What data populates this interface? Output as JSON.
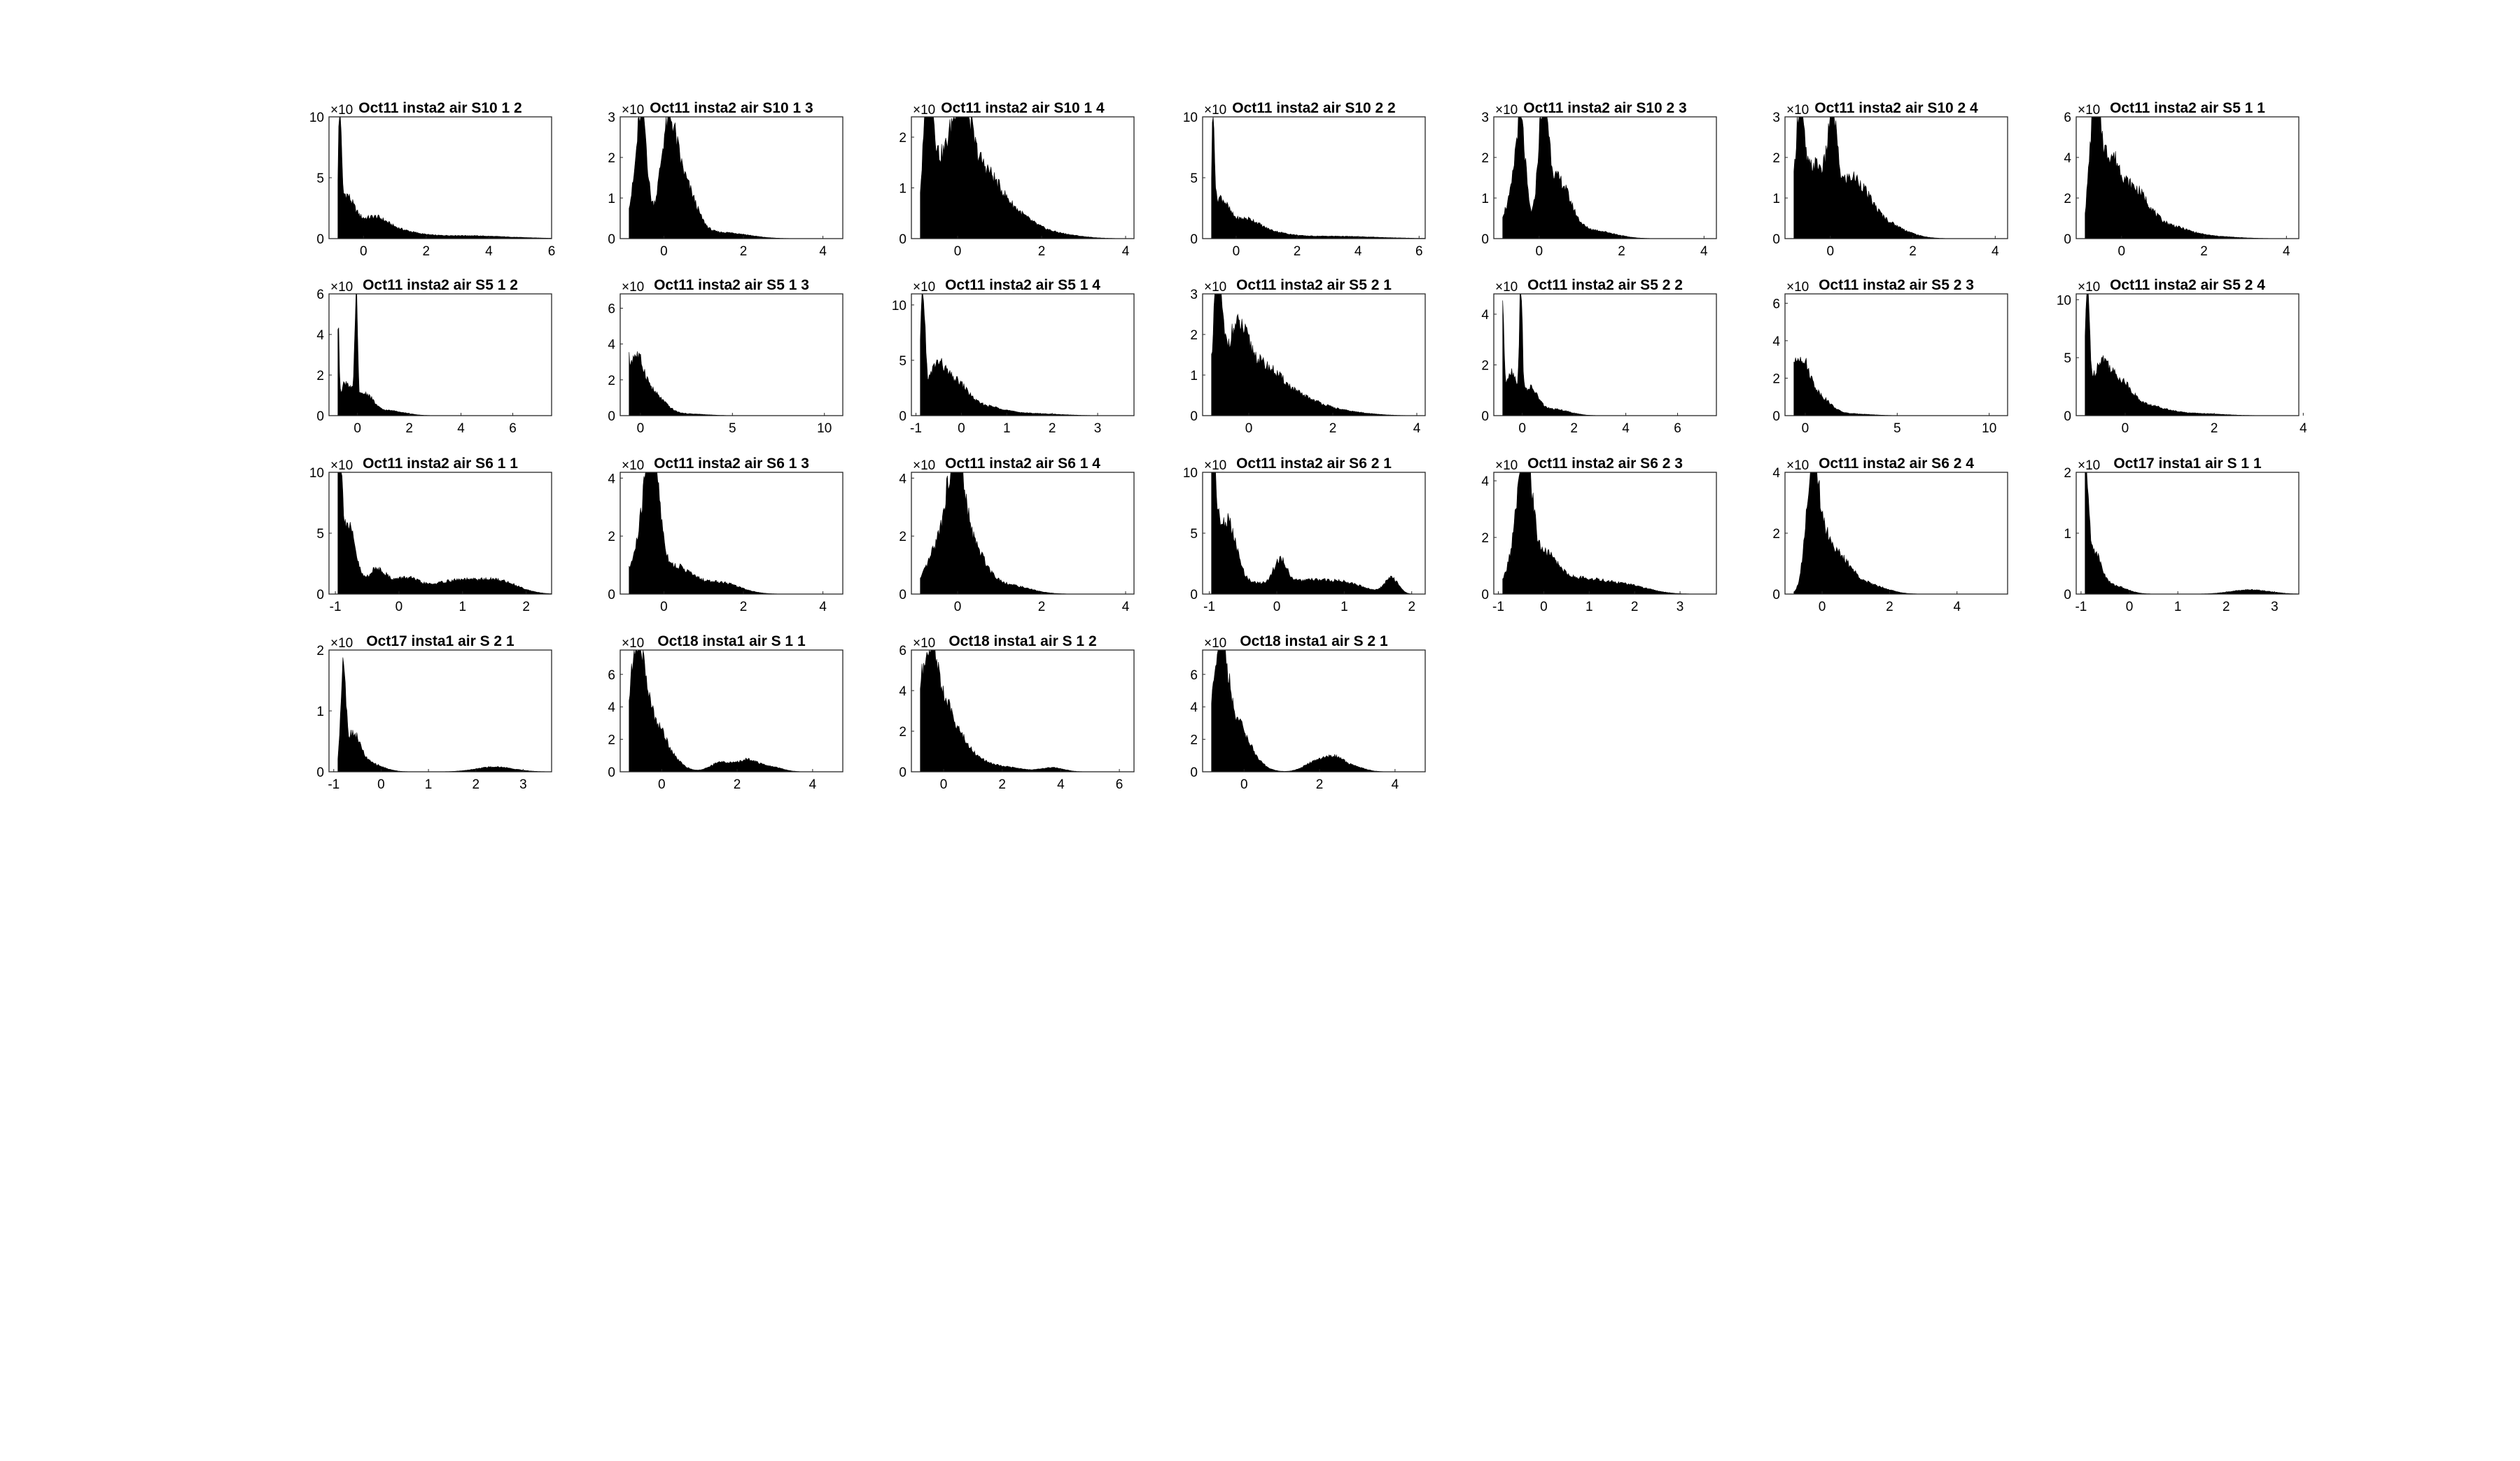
{
  "figure": {
    "background": "#ffffff",
    "bar_color": "#000000",
    "axes_color": "#262626"
  },
  "chart_data": [
    {
      "type": "histogram",
      "title": "Oct11 insta2 air S10 1 2",
      "exponent_label": "×10",
      "xticks": [
        0,
        2,
        4,
        6
      ],
      "xlim": [
        -1.1,
        6
      ],
      "yticks": [
        0,
        5,
        10
      ],
      "ylim": [
        0,
        10
      ],
      "peaks": [
        [
          -0.75,
          9.5,
          0.04
        ],
        [
          -0.6,
          3.5,
          0.3
        ],
        [
          0.3,
          1.4,
          0.4
        ],
        [
          1.0,
          0.6,
          0.6
        ],
        [
          3.0,
          0.25,
          1.5
        ]
      ]
    },
    {
      "type": "histogram",
      "title": "Oct11 insta2 air S10 1 3",
      "exponent_label": "×10",
      "xticks": [
        0,
        2,
        4
      ],
      "xlim": [
        -1.1,
        4.5
      ],
      "yticks": [
        0,
        1,
        2,
        3
      ],
      "ylim": [
        0,
        3
      ],
      "peaks": [
        [
          -0.55,
          2.4,
          0.12
        ],
        [
          -0.7,
          1.0,
          0.25
        ],
        [
          0.1,
          2.4,
          0.2
        ],
        [
          0.5,
          1.3,
          0.3
        ],
        [
          1.5,
          0.15,
          0.6
        ]
      ]
    },
    {
      "type": "histogram",
      "title": "Oct11 insta2 air S10 1 4",
      "exponent_label": "×10",
      "xticks": [
        0,
        2,
        4
      ],
      "xlim": [
        -1.1,
        4.2
      ],
      "yticks": [
        0,
        1,
        2
      ],
      "ylim": [
        0,
        2.4
      ],
      "peaks": [
        [
          -0.7,
          2.3,
          0.12
        ],
        [
          -0.35,
          1.4,
          0.3
        ],
        [
          0.1,
          1.75,
          0.2
        ],
        [
          0.5,
          1.2,
          0.4
        ],
        [
          1.2,
          0.5,
          0.5
        ],
        [
          2.2,
          0.1,
          0.6
        ]
      ]
    },
    {
      "type": "histogram",
      "title": "Oct11 insta2 air S10 2 2",
      "exponent_label": "×10",
      "xticks": [
        0,
        2,
        4,
        6
      ],
      "xlim": [
        -1.1,
        6.2
      ],
      "yticks": [
        0,
        5,
        10
      ],
      "ylim": [
        0,
        10
      ],
      "peaks": [
        [
          -0.75,
          8.7,
          0.04
        ],
        [
          -0.55,
          3.2,
          0.3
        ],
        [
          0.3,
          1.3,
          0.4
        ],
        [
          1.0,
          0.5,
          0.6
        ],
        [
          3.0,
          0.2,
          1.5
        ]
      ]
    },
    {
      "type": "histogram",
      "title": "Oct11 insta2 air S10 2 3",
      "exponent_label": "×10",
      "xticks": [
        0,
        2,
        4
      ],
      "xlim": [
        -1.1,
        4.3
      ],
      "yticks": [
        0,
        1,
        2,
        3
      ],
      "ylim": [
        0,
        3
      ],
      "peaks": [
        [
          -0.45,
          2.3,
          0.12
        ],
        [
          -0.65,
          0.9,
          0.25
        ],
        [
          0.1,
          2.85,
          0.12
        ],
        [
          0.45,
          1.4,
          0.3
        ],
        [
          1.3,
          0.2,
          0.5
        ]
      ]
    },
    {
      "type": "histogram",
      "title": "Oct11 insta2 air S10 2 4",
      "exponent_label": "×10",
      "xticks": [
        0,
        2,
        4
      ],
      "xlim": [
        -1.1,
        4.3
      ],
      "yticks": [
        0,
        1,
        2,
        3
      ],
      "ylim": [
        0,
        3
      ],
      "peaks": [
        [
          -0.75,
          2.5,
          0.1
        ],
        [
          -0.4,
          1.7,
          0.3
        ],
        [
          0.05,
          2.0,
          0.1
        ],
        [
          0.5,
          1.4,
          0.4
        ],
        [
          1.3,
          0.35,
          0.5
        ]
      ]
    },
    {
      "type": "histogram",
      "title": "Oct11 insta2 air S5 1 1",
      "exponent_label": "×10",
      "xticks": [
        0,
        2,
        4
      ],
      "xlim": [
        -1.1,
        4.3
      ],
      "yticks": [
        0,
        2,
        4,
        6
      ],
      "ylim": [
        0,
        6
      ],
      "peaks": [
        [
          -0.65,
          5.7,
          0.13
        ],
        [
          -0.3,
          3.5,
          0.25
        ],
        [
          0.3,
          2.2,
          0.35
        ],
        [
          1.1,
          0.6,
          0.5
        ],
        [
          2.2,
          0.1,
          0.6
        ]
      ]
    },
    {
      "type": "histogram",
      "title": "Oct11 insta2 air S5 1 2",
      "exponent_label": "×10",
      "xticks": [
        0,
        2,
        4,
        6
      ],
      "xlim": [
        -1.1,
        7.5
      ],
      "yticks": [
        0,
        2,
        4,
        6
      ],
      "ylim": [
        0,
        6
      ],
      "peaks": [
        [
          -0.75,
          3.7,
          0.04
        ],
        [
          -0.45,
          1.6,
          0.25
        ],
        [
          -0.05,
          5.3,
          0.05
        ],
        [
          0.3,
          1.0,
          0.3
        ],
        [
          1.2,
          0.25,
          0.6
        ]
      ]
    },
    {
      "type": "histogram",
      "title": "Oct11 insta2 air S5 1 3",
      "exponent_label": "×10",
      "xticks": [
        0,
        5,
        10
      ],
      "xlim": [
        -1.1,
        11
      ],
      "yticks": [
        0,
        2,
        4,
        6
      ],
      "ylim": [
        0,
        6.8
      ],
      "peaks": [
        [
          -0.75,
          6.5,
          0.06
        ],
        [
          -0.3,
          3.2,
          0.5
        ],
        [
          0.8,
          1.0,
          0.6
        ],
        [
          2.5,
          0.1,
          1.0
        ]
      ]
    },
    {
      "type": "histogram",
      "title": "Oct11 insta2 air S5 1 4",
      "exponent_label": "×10",
      "xticks": [
        -1,
        0,
        1,
        2,
        3
      ],
      "xlim": [
        -1.1,
        3.8
      ],
      "yticks": [
        0,
        5,
        10
      ],
      "ylim": [
        0,
        11
      ],
      "peaks": [
        [
          -0.85,
          10.0,
          0.05
        ],
        [
          -0.55,
          4.2,
          0.2
        ],
        [
          -0.1,
          2.6,
          0.25
        ],
        [
          0.5,
          0.8,
          0.4
        ],
        [
          1.5,
          0.2,
          0.6
        ]
      ]
    },
    {
      "type": "histogram",
      "title": "Oct11 insta2 air S5 2 1",
      "exponent_label": "×10",
      "xticks": [
        0,
        2,
        4
      ],
      "xlim": [
        -1.1,
        4.2
      ],
      "yticks": [
        0,
        1,
        2,
        3
      ],
      "ylim": [
        0,
        3
      ],
      "peaks": [
        [
          -0.75,
          2.9,
          0.1
        ],
        [
          -0.3,
          2.0,
          0.3
        ],
        [
          0.4,
          1.0,
          0.4
        ],
        [
          1.2,
          0.4,
          0.5
        ],
        [
          2.2,
          0.1,
          0.6
        ]
      ]
    },
    {
      "type": "histogram",
      "title": "Oct11 insta2 air S5 2 2",
      "exponent_label": "×10",
      "xticks": [
        0,
        2,
        4,
        6
      ],
      "xlim": [
        -1.1,
        7.5
      ],
      "yticks": [
        0,
        2,
        4
      ],
      "ylim": [
        0,
        4.8
      ],
      "peaks": [
        [
          -0.75,
          3.8,
          0.04
        ],
        [
          -0.45,
          1.7,
          0.25
        ],
        [
          -0.05,
          4.6,
          0.05
        ],
        [
          0.3,
          1.0,
          0.3
        ],
        [
          1.2,
          0.25,
          0.6
        ]
      ]
    },
    {
      "type": "histogram",
      "title": "Oct11 insta2 air S5 2 3",
      "exponent_label": "×10",
      "xticks": [
        0,
        5,
        10
      ],
      "xlim": [
        -1.1,
        11
      ],
      "yticks": [
        0,
        2,
        4,
        6
      ],
      "ylim": [
        0,
        6.5
      ],
      "peaks": [
        [
          -0.75,
          6.2,
          0.06
        ],
        [
          -0.3,
          3.0,
          0.5
        ],
        [
          0.8,
          0.9,
          0.6
        ],
        [
          2.5,
          0.1,
          1.0
        ]
      ]
    },
    {
      "type": "histogram",
      "title": "Oct11 insta2 air S5 2 4",
      "exponent_label": "×10",
      "xticks": [
        0,
        2,
        4
      ],
      "xlim": [
        -1.1,
        3.9
      ],
      "yticks": [
        0,
        5,
        10
      ],
      "ylim": [
        0,
        10.5
      ],
      "peaks": [
        [
          -0.85,
          9.8,
          0.05
        ],
        [
          -0.55,
          4.3,
          0.2
        ],
        [
          -0.1,
          2.6,
          0.25
        ],
        [
          0.5,
          0.8,
          0.4
        ],
        [
          1.5,
          0.2,
          0.6
        ]
      ]
    },
    {
      "type": "histogram",
      "title": "Oct11 insta2 air S6 1 1",
      "exponent_label": "×10",
      "xticks": [
        -1,
        0,
        1,
        2
      ],
      "xlim": [
        -1.1,
        2.4
      ],
      "yticks": [
        0,
        5,
        10
      ],
      "ylim": [
        0,
        10
      ],
      "peaks": [
        [
          -0.95,
          9.3,
          0.05
        ],
        [
          -0.8,
          5.5,
          0.12
        ],
        [
          -0.35,
          2.0,
          0.15
        ],
        [
          0.1,
          1.2,
          0.2
        ],
        [
          0.9,
          1.1,
          0.4
        ],
        [
          1.6,
          0.9,
          0.3
        ]
      ]
    },
    {
      "type": "histogram",
      "title": "Oct11 insta2 air S6 1 3",
      "exponent_label": "×10",
      "xticks": [
        0,
        2,
        4
      ],
      "xlim": [
        -1.1,
        4.5
      ],
      "yticks": [
        0,
        2,
        4
      ],
      "ylim": [
        0,
        4.2
      ],
      "peaks": [
        [
          -0.3,
          4.0,
          0.18
        ],
        [
          -0.55,
          1.5,
          0.3
        ],
        [
          0.3,
          0.9,
          0.4
        ],
        [
          1.4,
          0.4,
          0.5
        ]
      ]
    },
    {
      "type": "histogram",
      "title": "Oct11 insta2 air S6 1 4",
      "exponent_label": "×10",
      "xticks": [
        0,
        2,
        4
      ],
      "xlim": [
        -1.1,
        4.2
      ],
      "yticks": [
        0,
        2,
        4
      ],
      "ylim": [
        0,
        4.2
      ],
      "peaks": [
        [
          -0.05,
          3.3,
          0.2
        ],
        [
          -0.45,
          1.5,
          0.3
        ],
        [
          0.3,
          1.6,
          0.35
        ],
        [
          1.2,
          0.3,
          0.5
        ]
      ]
    },
    {
      "type": "histogram",
      "title": "Oct11 insta2 air S6 2 1",
      "exponent_label": "×10",
      "xticks": [
        -1,
        0,
        1,
        2
      ],
      "xlim": [
        -1.1,
        2.2
      ],
      "yticks": [
        0,
        5,
        10
      ],
      "ylim": [
        0,
        10
      ],
      "peaks": [
        [
          -0.95,
          9.3,
          0.05
        ],
        [
          -0.75,
          6.0,
          0.15
        ],
        [
          -0.3,
          0.8,
          0.2
        ],
        [
          0.05,
          2.2,
          0.1
        ],
        [
          0.4,
          1.0,
          0.3
        ],
        [
          1.0,
          0.9,
          0.3
        ],
        [
          1.7,
          1.3,
          0.1
        ]
      ]
    },
    {
      "type": "histogram",
      "title": "Oct11 insta2 air S6 2 3",
      "exponent_label": "×10",
      "xticks": [
        -1,
        0,
        1,
        2,
        3
      ],
      "xlim": [
        -1.1,
        3.8
      ],
      "yticks": [
        0,
        2,
        4
      ],
      "ylim": [
        0,
        4.3
      ],
      "peaks": [
        [
          -0.4,
          4.1,
          0.14
        ],
        [
          -0.6,
          1.5,
          0.2
        ],
        [
          0.0,
          1.3,
          0.3
        ],
        [
          0.8,
          0.5,
          0.5
        ],
        [
          1.8,
          0.3,
          0.5
        ]
      ]
    },
    {
      "type": "histogram",
      "title": "Oct11 insta2 air S6 2 4",
      "exponent_label": "×10",
      "xticks": [
        0,
        2,
        4
      ],
      "xlim": [
        -1.1,
        5.5
      ],
      "yticks": [
        0,
        2,
        4
      ],
      "ylim": [
        0,
        4
      ],
      "peaks": [
        [
          -0.3,
          3.4,
          0.18
        ],
        [
          0.0,
          1.7,
          0.3
        ],
        [
          0.6,
          0.9,
          0.35
        ],
        [
          1.4,
          0.3,
          0.5
        ]
      ]
    },
    {
      "type": "histogram",
      "title": "Oct17 insta1 air S 1 1",
      "exponent_label": "×10",
      "xticks": [
        -1,
        0,
        1,
        2,
        3
      ],
      "xlim": [
        -1.1,
        3.5
      ],
      "yticks": [
        0,
        1,
        2
      ],
      "ylim": [
        0,
        2
      ],
      "peaks": [
        [
          -0.9,
          1.8,
          0.05
        ],
        [
          -0.75,
          0.65,
          0.15
        ],
        [
          -0.4,
          0.15,
          0.3
        ],
        [
          2.5,
          0.07,
          0.4
        ]
      ]
    },
    {
      "type": "histogram",
      "title": "Oct17 insta1 air S 2 1",
      "exponent_label": "×10",
      "xticks": [
        -1,
        0,
        1,
        2,
        3
      ],
      "xlim": [
        -1.1,
        3.6
      ],
      "yticks": [
        0,
        1,
        2
      ],
      "ylim": [
        0,
        2
      ],
      "peaks": [
        [
          -0.8,
          1.65,
          0.05
        ],
        [
          -0.6,
          0.55,
          0.15
        ],
        [
          -0.3,
          0.15,
          0.3
        ],
        [
          2.4,
          0.08,
          0.4
        ]
      ]
    },
    {
      "type": "histogram",
      "title": "Oct18 insta1 air S 1 1",
      "exponent_label": "×10",
      "xticks": [
        0,
        2,
        4
      ],
      "xlim": [
        -1.1,
        4.8
      ],
      "yticks": [
        0,
        2,
        4,
        6
      ],
      "ylim": [
        0,
        7.5
      ],
      "peaks": [
        [
          -0.65,
          7.4,
          0.2
        ],
        [
          -0.2,
          2.8,
          0.3
        ],
        [
          0.3,
          0.5,
          0.3
        ],
        [
          1.6,
          0.6,
          0.3
        ],
        [
          2.3,
          0.7,
          0.25
        ],
        [
          2.9,
          0.3,
          0.3
        ]
      ]
    },
    {
      "type": "histogram",
      "title": "Oct18 insta1 air S 1 2",
      "exponent_label": "×10",
      "xticks": [
        0,
        2,
        4,
        6
      ],
      "xlim": [
        -1.1,
        6.5
      ],
      "yticks": [
        0,
        2,
        4,
        6
      ],
      "ylim": [
        0,
        6
      ],
      "peaks": [
        [
          -0.55,
          5.0,
          0.3
        ],
        [
          0.0,
          2.8,
          0.45
        ],
        [
          0.8,
          0.8,
          0.5
        ],
        [
          2.0,
          0.25,
          0.6
        ],
        [
          3.7,
          0.2,
          0.4
        ]
      ]
    },
    {
      "type": "histogram",
      "title": "Oct18 insta1 air S 2 1",
      "exponent_label": "×10",
      "xticks": [
        0,
        2,
        4
      ],
      "xlim": [
        -1.1,
        4.8
      ],
      "yticks": [
        0,
        2,
        4,
        6
      ],
      "ylim": [
        0,
        7.5
      ],
      "peaks": [
        [
          -0.65,
          7.4,
          0.2
        ],
        [
          -0.2,
          2.8,
          0.3
        ],
        [
          0.3,
          0.4,
          0.3
        ],
        [
          1.9,
          0.6,
          0.3
        ],
        [
          2.4,
          0.75,
          0.25
        ],
        [
          2.9,
          0.3,
          0.3
        ]
      ]
    }
  ]
}
